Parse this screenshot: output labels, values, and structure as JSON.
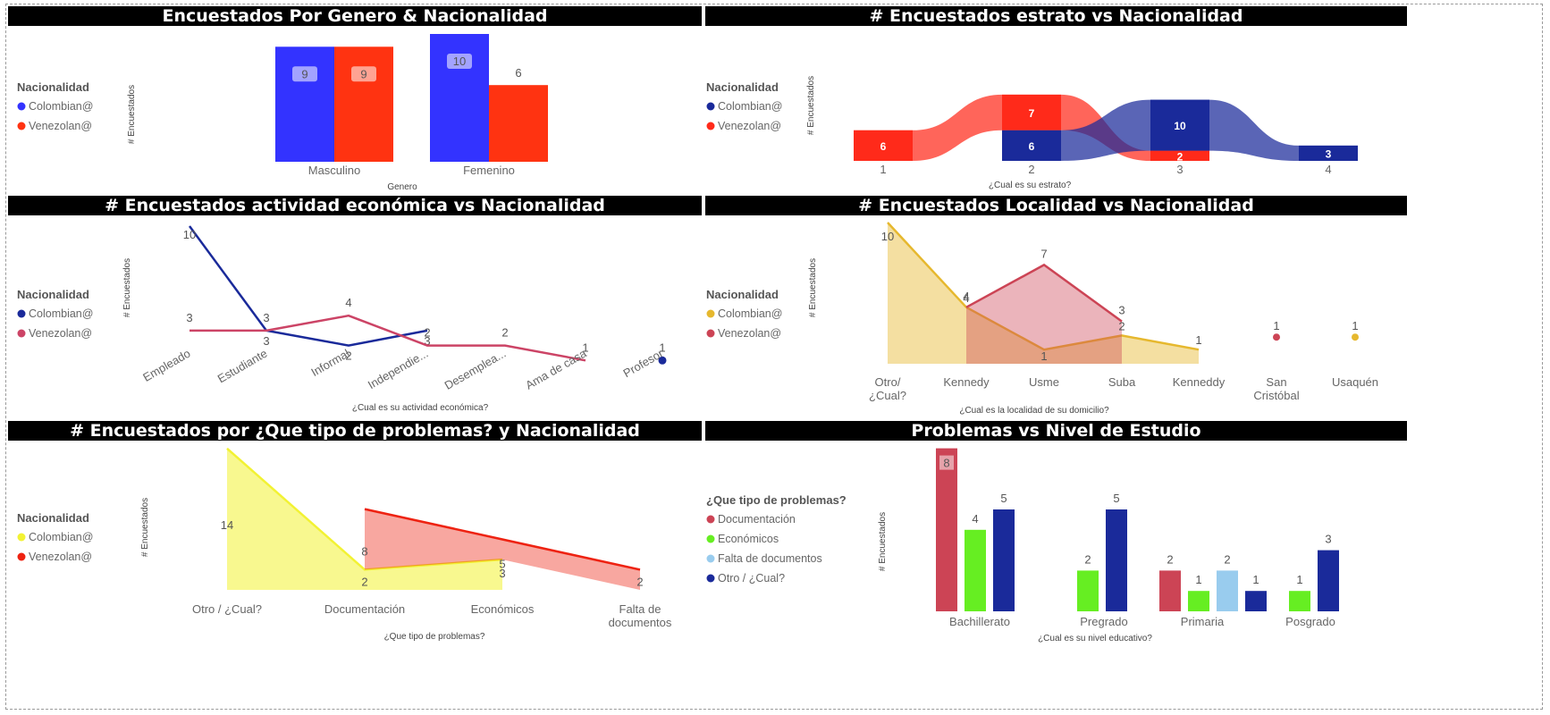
{
  "chart_data": [
    {
      "type": "bar",
      "title": "Encuestados Por Genero & Nacionalidad",
      "xlabel": "Genero",
      "ylabel": "# Encuestados",
      "legend_title": "Nacionalidad",
      "categories": [
        "Masculino",
        "Femenino"
      ],
      "series": [
        {
          "name": "Colombian@",
          "color": "#3333ff",
          "values": [
            9,
            10
          ]
        },
        {
          "name": "Venezolan@",
          "color": "#ff3311",
          "values": [
            9,
            6
          ]
        }
      ],
      "ylim": [
        0,
        10
      ]
    },
    {
      "type": "bar",
      "title": "# Encuestados estrato vs Nacionalidad",
      "xlabel": "¿Cual es su estrato?",
      "ylabel": "# Encuestados",
      "legend_title": "Nacionalidad",
      "categories": [
        "1",
        "2",
        "3",
        "4"
      ],
      "series": [
        {
          "name": "Colombian@",
          "color": "#1a2a9a",
          "values": [
            null,
            6,
            10,
            3
          ]
        },
        {
          "name": "Venezolan@",
          "color": "#ff2a1a",
          "values": [
            6,
            7,
            2,
            null
          ]
        }
      ],
      "ylim": [
        0,
        12
      ]
    },
    {
      "type": "line",
      "title": "# Encuestados actividad económica vs Nacionalidad",
      "xlabel": "¿Cual es su actividad económica?",
      "ylabel": "# Encuestados",
      "legend_title": "Nacionalidad",
      "categories": [
        "Empleado",
        "Estudiante",
        "Informal",
        "Independie...",
        "Desemplea...",
        "Ama de casa",
        "Profesor"
      ],
      "series": [
        {
          "name": "Colombian@",
          "color": "#1a2a9a",
          "values": [
            10,
            3,
            2,
            3,
            null,
            null,
            1
          ]
        },
        {
          "name": "Venezolan@",
          "color": "#cc4466",
          "values": [
            3,
            3,
            4,
            2,
            2,
            1,
            null
          ]
        }
      ],
      "ylim": [
        0,
        10
      ]
    },
    {
      "type": "area",
      "title": "# Encuestados Localidad vs Nacionalidad",
      "xlabel": "¿Cual es la localidad de su domicilio?",
      "ylabel": "# Encuestados",
      "legend_title": "Nacionalidad",
      "categories": [
        "Otro/ ¿Cual?",
        "Kennedy",
        "Usme",
        "Suba",
        "Kenneddy",
        "San Cristóbal",
        "Usaquén"
      ],
      "series": [
        {
          "name": "Colombian@",
          "color": "#e6b82e",
          "values": [
            10,
            4,
            1,
            2,
            1,
            null,
            1
          ]
        },
        {
          "name": "Venezolan@",
          "color": "#cc4455",
          "values": [
            null,
            4,
            7,
            3,
            null,
            1,
            null
          ]
        }
      ],
      "ylim": [
        0,
        10
      ]
    },
    {
      "type": "area",
      "title": "# Encuestados por ¿Que tipo de problemas? y Nacionalidad",
      "xlabel": "¿Que tipo de problemas?",
      "ylabel": "# Encuestados",
      "legend_title": "Nacionalidad",
      "categories": [
        "Otro / ¿Cual?",
        "Documentación",
        "Económicos",
        "Falta de documentos"
      ],
      "series": [
        {
          "name": "Colombian@",
          "color": "#f2f233",
          "values": [
            14,
            2,
            3,
            null
          ]
        },
        {
          "name": "Venezolan@",
          "color": "#ee2211",
          "values": [
            null,
            8,
            5,
            2
          ]
        }
      ],
      "ylim": [
        0,
        14
      ]
    },
    {
      "type": "bar",
      "title": "Problemas vs Nivel de Estudio",
      "xlabel": "¿Cual es su nivel educativo?",
      "ylabel": "# Encuestados",
      "legend_title": "¿Que tipo de problemas?",
      "categories": [
        "Bachillerato",
        "Pregrado",
        "Primaria",
        "Posgrado"
      ],
      "series": [
        {
          "name": "Documentación",
          "color": "#cc4455",
          "values": [
            8,
            null,
            2,
            null
          ]
        },
        {
          "name": "Económicos",
          "color": "#66ee22",
          "values": [
            4,
            2,
            1,
            1
          ]
        },
        {
          "name": "Falta de documentos",
          "color": "#99ccee",
          "values": [
            null,
            null,
            2,
            null
          ]
        },
        {
          "name": "Otro / ¿Cual?",
          "color": "#1a2a9a",
          "values": [
            5,
            5,
            1,
            3
          ]
        }
      ],
      "ylim": [
        0,
        8
      ]
    }
  ]
}
